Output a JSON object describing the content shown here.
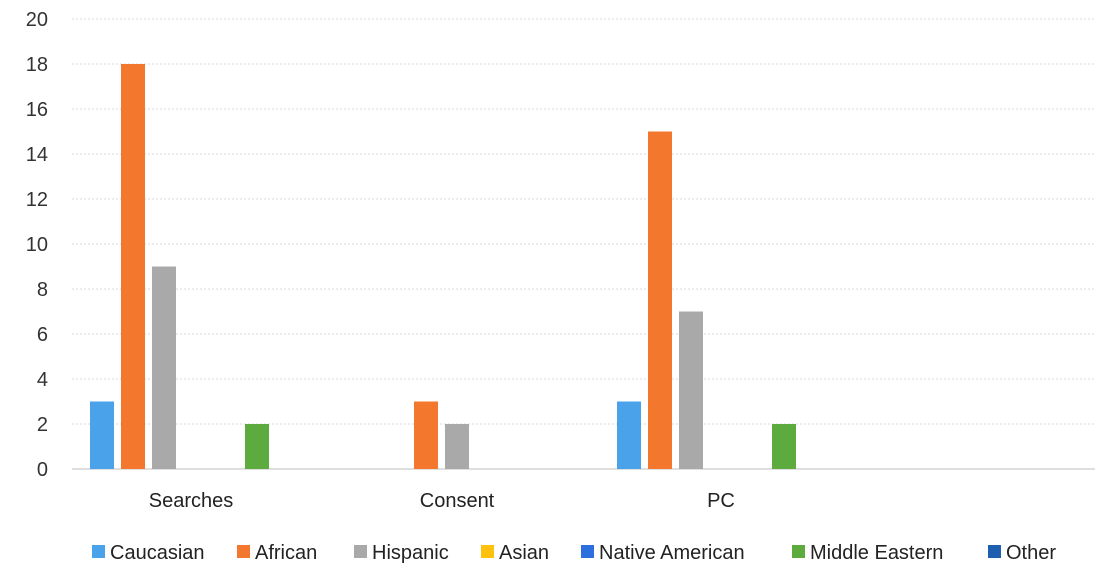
{
  "chart_data": {
    "type": "bar",
    "categories": [
      "Searches",
      "Consent",
      "PC"
    ],
    "series": [
      {
        "name": "Caucasian",
        "color": "#4aa3ea",
        "values": [
          3,
          0,
          3
        ]
      },
      {
        "name": "African",
        "color": "#f4772e",
        "values": [
          18,
          3,
          15
        ]
      },
      {
        "name": "Hispanic",
        "color": "#a9a9a9",
        "values": [
          9,
          2,
          7
        ]
      },
      {
        "name": "Asian",
        "color": "#fdc10e",
        "values": [
          0,
          0,
          0
        ]
      },
      {
        "name": "Native American",
        "color": "#2e6fe0",
        "values": [
          0,
          0,
          0
        ]
      },
      {
        "name": "Middle Eastern",
        "color": "#5daa3f",
        "values": [
          2,
          0,
          2
        ]
      },
      {
        "name": "Other",
        "color": "#1f5fb0",
        "values": [
          0,
          0,
          0
        ]
      }
    ],
    "yticks": [
      "0",
      "2",
      "4",
      "6",
      "8",
      "10",
      "12",
      "14",
      "16",
      "18",
      "20"
    ],
    "ylim": [
      0,
      20
    ],
    "grid": true,
    "legend_position": "bottom"
  }
}
